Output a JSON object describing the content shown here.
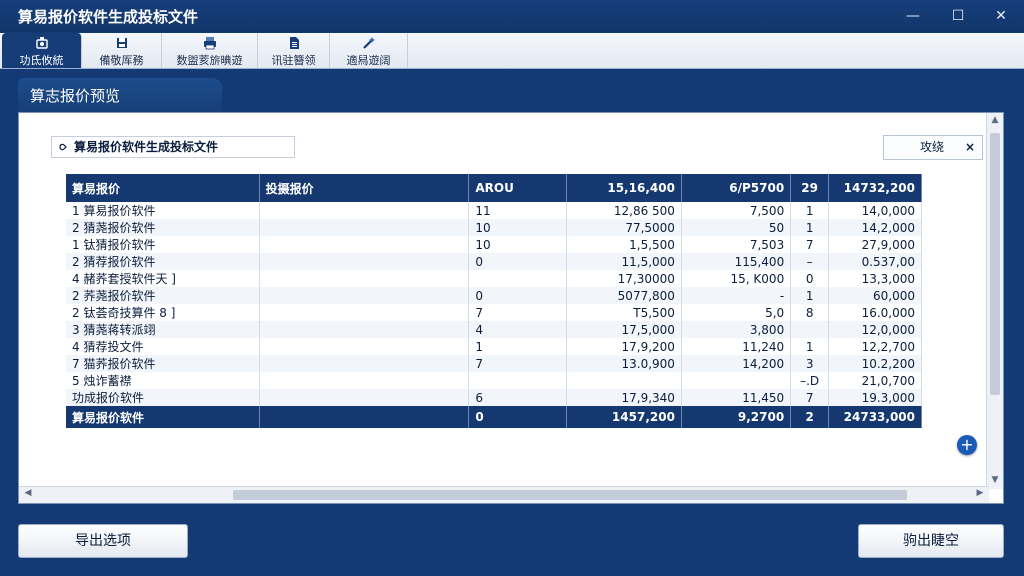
{
  "window": {
    "title": "算易报价软件生成投标文件",
    "minimize": "—",
    "maximize": "☐",
    "close": "✕"
  },
  "toolbar": {
    "items": [
      {
        "label": "功氐攸統",
        "icon": "gear-icon"
      },
      {
        "label": "備敬厍務",
        "icon": "save-icon"
      },
      {
        "label": "数盥荄旂晪遊",
        "icon": "printer-icon"
      },
      {
        "label": "讯驻簪领",
        "icon": "document-icon"
      },
      {
        "label": "適舄遊阔",
        "icon": "wand-icon"
      }
    ]
  },
  "section": {
    "title": "算志报价预览"
  },
  "crumb": {
    "text": "算易报价软件生成投标文件"
  },
  "filter": {
    "label": "攻绕",
    "clear": "×"
  },
  "table": {
    "headers": [
      "算易报价",
      "投摄报价",
      "AROU",
      "15,16,400",
      "6/P5700",
      "29",
      "14732,200"
    ],
    "rows": [
      [
        "1 算易报价软件",
        "",
        "11",
        "12,86 500",
        "7,500",
        "1",
        "14,0,000"
      ],
      [
        "2 猜荛报价软件",
        "",
        "10",
        "77,5000",
        "50",
        "1",
        "14,2,000"
      ],
      [
        "1 钛猜报价软件",
        "",
        "10",
        "1,5,500",
        "7,503",
        "7",
        "27,9,000"
      ],
      [
        "2 猜荐报价软件",
        "",
        "0",
        "11,5,000",
        "115,400",
        "–",
        "0.537,00"
      ],
      [
        "4 赭荞套授软件天 ]",
        "",
        "",
        "17,30000",
        "15, K000",
        "0",
        "13,3,000"
      ],
      [
        "2 荞荛报价软件",
        "",
        "0",
        "5077,800",
        "-",
        "1",
        "60,000"
      ],
      [
        "2 钛荟奇技算件 8 ]",
        "",
        "7",
        "T5,500",
        "5,0",
        "8",
        "16.0,000"
      ],
      [
        "3 猜荛蒋转派翊",
        "",
        "4",
        "17,5,000",
        "3,800",
        "",
        "12,0,000"
      ],
      [
        "4 猜荐投文件",
        "",
        "1",
        "17,9,200",
        "11,240",
        "1",
        "12,2,700"
      ],
      [
        "7 猫荞报价软件",
        "",
        "7",
        "13.0,900",
        "14,200",
        "3",
        "10.2,200"
      ],
      [
        "5 烛诈蓄襟",
        "",
        "",
        "",
        "",
        "–.D",
        "21,0,700"
      ],
      [
        "功成报价软件",
        "",
        "6",
        "17,9,340",
        "11,450",
        "7",
        "19.3,000"
      ]
    ],
    "total": [
      "算易报价软件",
      "",
      "0",
      "1457,200",
      "9,2700",
      "2",
      "24733,000"
    ]
  },
  "footer": {
    "export_options": "导出选项",
    "export_confirm": "驹出睫空"
  },
  "colors": {
    "window_bg": "#133a74",
    "header_bg": "#14386f",
    "accent": "#1c5ab8"
  }
}
